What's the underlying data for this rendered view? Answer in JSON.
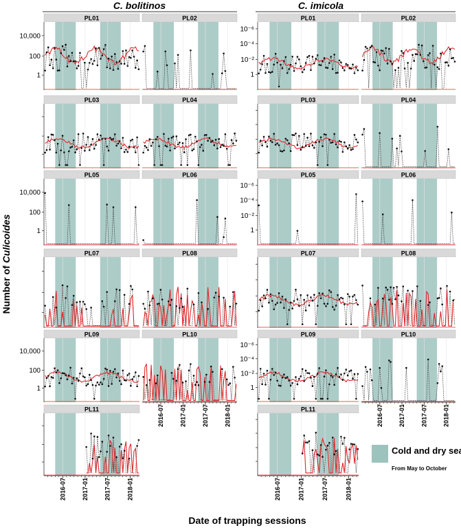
{
  "figure": {
    "species_titles": [
      "C. bolitinos",
      "C. imicola"
    ],
    "ylabel_prefix": "Number of ",
    "ylabel_italic": "Culicoides",
    "xlabel": "Date of trapping sessions",
    "legend": {
      "title": "Cold and dry season",
      "subtitle": "From May to October",
      "color": "#9dc3be"
    },
    "colors": {
      "observed_line": "#333333",
      "fitted_line": "#e0262a",
      "season_band": "#9dc3be",
      "strip": "#d9d9d9"
    }
  },
  "chart_data": [
    {
      "type": "line",
      "species": "C. bolitinos",
      "x_ticks": [
        "2016-07",
        "2017-01",
        "2017-07",
        "2018-01"
      ],
      "y_ticks": [
        "1",
        "100",
        "10,000"
      ],
      "cold_dry_seasons": [
        [
          "2016-05",
          "2016-10"
        ],
        [
          "2017-05",
          "2017-10"
        ]
      ],
      "series": [
        "observed",
        "fitted"
      ],
      "panels": [
        {
          "site": "PL01",
          "shape": "high"
        },
        {
          "site": "PL02",
          "shape": "sparse"
        },
        {
          "site": "PL03",
          "shape": "mid"
        },
        {
          "site": "PL04",
          "shape": "mid"
        },
        {
          "site": "PL05",
          "shape": "zero"
        },
        {
          "site": "PL06",
          "shape": "zero"
        },
        {
          "site": "PL07",
          "shape": "spiky"
        },
        {
          "site": "PL08",
          "shape": "spiky"
        },
        {
          "site": "PL09",
          "shape": "mid"
        },
        {
          "site": "PL10",
          "shape": "spiky"
        },
        {
          "site": "PL11",
          "shape": "late"
        }
      ]
    },
    {
      "type": "line",
      "species": "C. imicola",
      "x_ticks": [
        "2016-07",
        "2017-01",
        "2017-07",
        "2018-01"
      ],
      "y_ticks": [
        "1",
        "10⁻²",
        "10⁻⁴",
        "10⁻⁶"
      ],
      "cold_dry_seasons": [
        [
          "2016-05",
          "2016-10"
        ],
        [
          "2017-05",
          "2017-10"
        ]
      ],
      "series": [
        "observed",
        "fitted"
      ],
      "panels": [
        {
          "site": "PL01",
          "shape": "mid"
        },
        {
          "site": "PL02",
          "shape": "high"
        },
        {
          "site": "PL03",
          "shape": "mid"
        },
        {
          "site": "PL04",
          "shape": "sparse"
        },
        {
          "site": "PL05",
          "shape": "zero"
        },
        {
          "site": "PL06",
          "shape": "zero"
        },
        {
          "site": "PL07",
          "shape": "mid"
        },
        {
          "site": "PL08",
          "shape": "spiky"
        },
        {
          "site": "PL09",
          "shape": "mid"
        },
        {
          "site": "PL10",
          "shape": "sparse"
        },
        {
          "site": "PL11",
          "shape": "late"
        }
      ]
    }
  ]
}
